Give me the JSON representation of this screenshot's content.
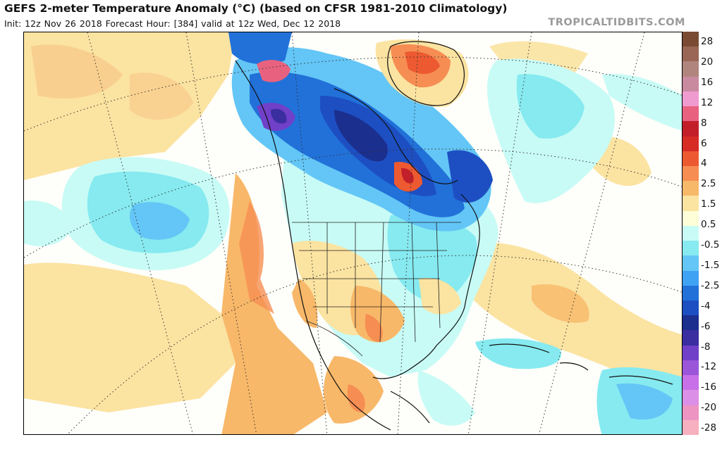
{
  "header": {
    "title": "GEFS 2-meter Temperature Anomaly (°C) (based on CFSR 1981-2010 Climatology)",
    "subtitle": "Init: 12z Nov 26 2018   Forecast Hour: [384]   valid at 12z Wed, Dec 12 2018",
    "brand": "TROPICALTIDBITS.COM"
  },
  "colorbar": {
    "colors": [
      "#7a4a33",
      "#9a6655",
      "#b0857d",
      "#c98aa0",
      "#f09bd0",
      "#e8627f",
      "#c31f2b",
      "#d72b26",
      "#ed5a31",
      "#f68e53",
      "#f8b869",
      "#fbe3a1",
      "#fefed8",
      "#c8fbf6",
      "#86eaf0",
      "#63c6f6",
      "#3fa2f3",
      "#2171d9",
      "#1d4fc2",
      "#1b2f8e",
      "#3b2ea0",
      "#7040c8",
      "#9a55d9",
      "#c870e8",
      "#dc8fe6",
      "#ee94c2",
      "#f6b0c0"
    ],
    "labels": [
      "28",
      "20",
      "16",
      "12",
      "8",
      "6",
      "4",
      "2.5",
      "1.5",
      "0.5",
      "-0.5",
      "-1.5",
      "-2.5",
      "-4",
      "-6",
      "-8",
      "-12",
      "-16",
      "-20",
      "-28"
    ]
  }
}
